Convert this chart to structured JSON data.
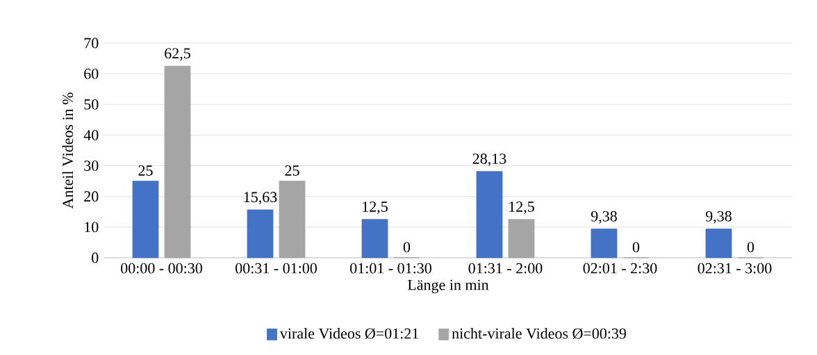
{
  "chart_data": {
    "type": "bar",
    "xlabel": "Länge in min",
    "ylabel": "Anteil Videos in %",
    "categories": [
      "00:00 - 00:30",
      "00:31 - 01:00",
      "01:01 - 01:30",
      "01:31 - 2:00",
      "02:01 - 2:30",
      "02:31 - 3:00"
    ],
    "series": [
      {
        "name": "virale Videos Ø=01:21",
        "color": "#4472c4",
        "values": [
          25,
          15.63,
          12.5,
          28.13,
          9.38,
          9.38
        ],
        "value_labels": [
          "25",
          "15,63",
          "12,5",
          "28,13",
          "9,38",
          "9,38"
        ]
      },
      {
        "name": "nicht-virale Videos Ø=00:39",
        "color": "#a5a5a5",
        "values": [
          62.5,
          25,
          0,
          12.5,
          0,
          0
        ],
        "value_labels": [
          "62,5",
          "25",
          "0",
          "12,5",
          "0",
          "0"
        ]
      }
    ],
    "ylim": [
      0,
      70
    ],
    "yticks": [
      0,
      10,
      20,
      30,
      40,
      50,
      60,
      70
    ],
    "grid": "y",
    "legend": "bottom"
  }
}
